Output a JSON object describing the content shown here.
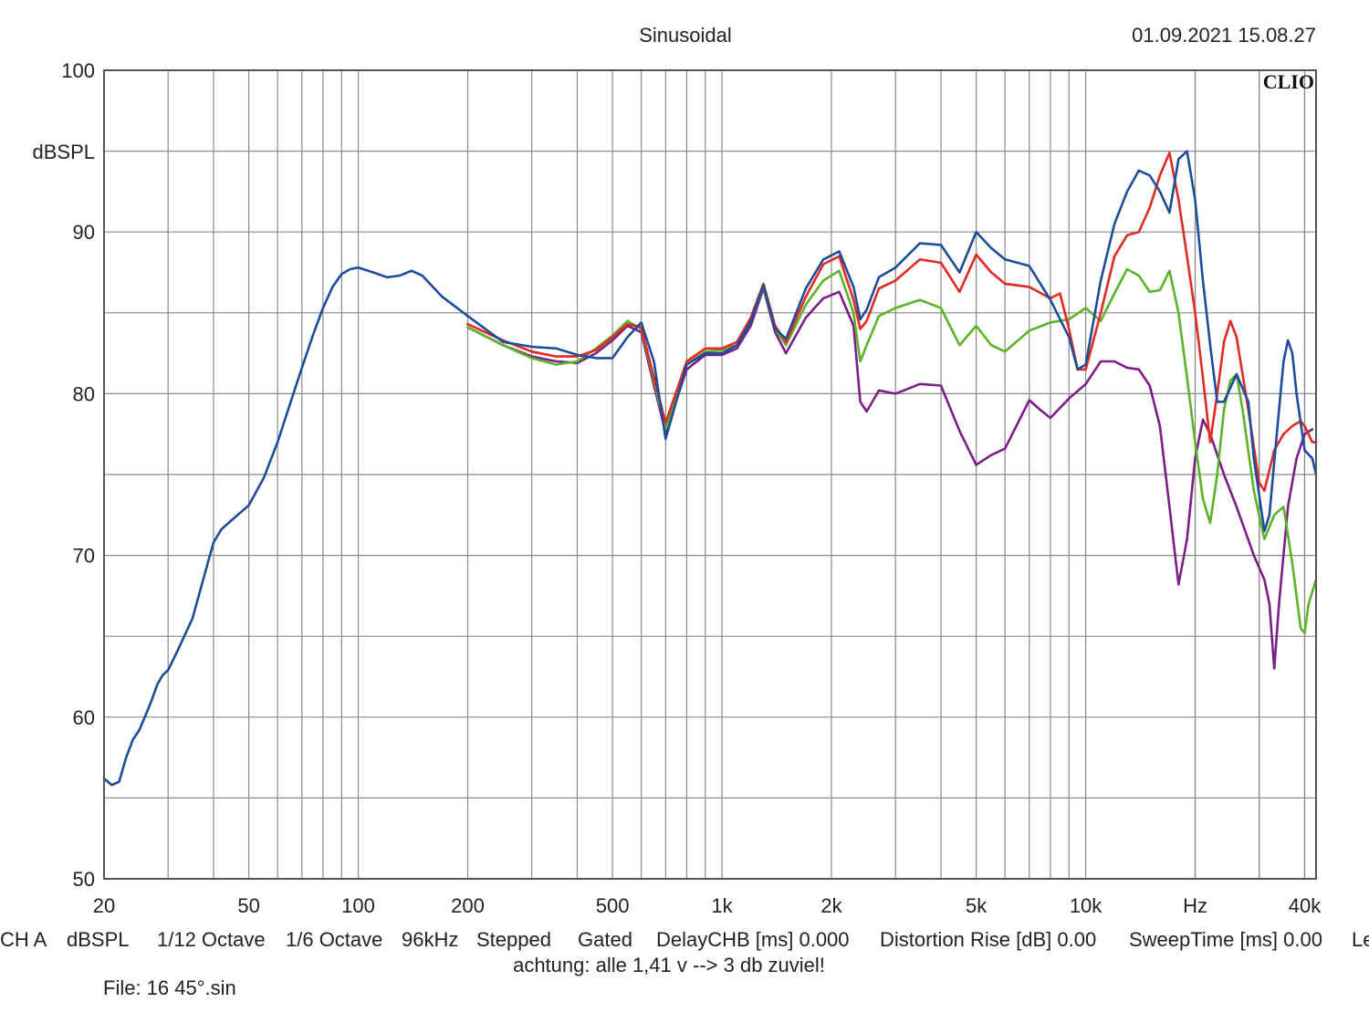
{
  "header": {
    "title": "Sinusoidal",
    "timestamp": "01.09.2021 15.08.27",
    "logo": "CLIO"
  },
  "chart_data": {
    "type": "line",
    "title": "Sinusoidal",
    "ylabel": "dBSPL",
    "xlabel": "Hz",
    "x_scale": "log",
    "xlim": [
      20,
      43000
    ],
    "ylim": [
      50,
      100
    ],
    "grid": true,
    "y_ticks": [
      "100",
      "90",
      "80",
      "70",
      "60",
      "50"
    ],
    "x_ticks": [
      "20",
      "50",
      "100",
      "200",
      "500",
      "1k",
      "2k",
      "5k",
      "10k",
      "Hz",
      "40k"
    ],
    "series": [
      {
        "color": "#7b1f86",
        "points": [
          [
            200,
            84.1
          ],
          [
            250,
            83.0
          ],
          [
            300,
            82.3
          ],
          [
            350,
            82.0
          ],
          [
            400,
            81.9
          ],
          [
            450,
            82.5
          ],
          [
            500,
            83.3
          ],
          [
            550,
            84.2
          ],
          [
            600,
            83.8
          ],
          [
            650,
            80.5
          ],
          [
            700,
            77.6
          ],
          [
            800,
            81.5
          ],
          [
            900,
            82.4
          ],
          [
            1000,
            82.4
          ],
          [
            1100,
            82.8
          ],
          [
            1200,
            84.2
          ],
          [
            1300,
            86.5
          ],
          [
            1400,
            83.8
          ],
          [
            1500,
            82.5
          ],
          [
            1700,
            84.7
          ],
          [
            1900,
            85.9
          ],
          [
            2100,
            86.3
          ],
          [
            2300,
            84.2
          ],
          [
            2400,
            79.5
          ],
          [
            2500,
            78.9
          ],
          [
            2700,
            80.2
          ],
          [
            3000,
            80.0
          ],
          [
            3500,
            80.6
          ],
          [
            4000,
            80.5
          ],
          [
            4500,
            77.7
          ],
          [
            5000,
            75.6
          ],
          [
            5500,
            76.2
          ],
          [
            6000,
            76.6
          ],
          [
            7000,
            79.6
          ],
          [
            7500,
            79.0
          ],
          [
            8000,
            78.5
          ],
          [
            9000,
            79.7
          ],
          [
            10000,
            80.6
          ],
          [
            11000,
            82.0
          ],
          [
            12000,
            82.0
          ],
          [
            13000,
            81.6
          ],
          [
            14000,
            81.5
          ],
          [
            15000,
            80.5
          ],
          [
            16000,
            78.0
          ],
          [
            17000,
            73.0
          ],
          [
            18000,
            68.2
          ],
          [
            19000,
            71.0
          ],
          [
            20000,
            76.0
          ],
          [
            21000,
            78.4
          ],
          [
            22000,
            77.5
          ],
          [
            24000,
            75.0
          ],
          [
            26000,
            73.0
          ],
          [
            29000,
            70.0
          ],
          [
            31000,
            68.5
          ],
          [
            32000,
            67.0
          ],
          [
            33000,
            63.0
          ],
          [
            34000,
            67.0
          ],
          [
            36000,
            73.0
          ],
          [
            38000,
            76.0
          ],
          [
            40000,
            77.5
          ],
          [
            42000,
            77.8
          ]
        ]
      },
      {
        "color": "#5bb32a",
        "points": [
          [
            200,
            84.1
          ],
          [
            250,
            83.0
          ],
          [
            300,
            82.2
          ],
          [
            350,
            81.8
          ],
          [
            400,
            82.0
          ],
          [
            450,
            82.8
          ],
          [
            500,
            83.6
          ],
          [
            550,
            84.5
          ],
          [
            600,
            84.0
          ],
          [
            650,
            80.8
          ],
          [
            700,
            77.8
          ],
          [
            800,
            81.8
          ],
          [
            900,
            82.6
          ],
          [
            1000,
            82.7
          ],
          [
            1100,
            83.0
          ],
          [
            1200,
            84.5
          ],
          [
            1300,
            86.6
          ],
          [
            1400,
            84.0
          ],
          [
            1500,
            83.0
          ],
          [
            1700,
            85.5
          ],
          [
            1900,
            87.0
          ],
          [
            2100,
            87.6
          ],
          [
            2300,
            85.0
          ],
          [
            2400,
            82.0
          ],
          [
            2500,
            83.0
          ],
          [
            2700,
            84.8
          ],
          [
            3000,
            85.3
          ],
          [
            3500,
            85.8
          ],
          [
            4000,
            85.3
          ],
          [
            4500,
            83.0
          ],
          [
            5000,
            84.2
          ],
          [
            5500,
            83.0
          ],
          [
            6000,
            82.6
          ],
          [
            7000,
            83.9
          ],
          [
            8000,
            84.4
          ],
          [
            9000,
            84.6
          ],
          [
            10000,
            85.3
          ],
          [
            11000,
            84.5
          ],
          [
            12000,
            86.2
          ],
          [
            13000,
            87.7
          ],
          [
            14000,
            87.3
          ],
          [
            15000,
            86.3
          ],
          [
            16000,
            86.4
          ],
          [
            17000,
            87.6
          ],
          [
            18000,
            85.0
          ],
          [
            19000,
            81.0
          ],
          [
            20000,
            77.0
          ],
          [
            21000,
            73.5
          ],
          [
            22000,
            72.0
          ],
          [
            23000,
            75.0
          ],
          [
            24000,
            79.0
          ],
          [
            25000,
            80.8
          ],
          [
            26000,
            81.2
          ],
          [
            27000,
            79.0
          ],
          [
            29000,
            74.0
          ],
          [
            31000,
            71.0
          ],
          [
            33000,
            72.5
          ],
          [
            35000,
            73.0
          ],
          [
            37000,
            69.5
          ],
          [
            39000,
            65.5
          ],
          [
            40000,
            65.2
          ],
          [
            41000,
            67.0
          ],
          [
            43000,
            68.5
          ]
        ]
      },
      {
        "color": "#e02a22",
        "points": [
          [
            200,
            84.3
          ],
          [
            250,
            83.3
          ],
          [
            300,
            82.6
          ],
          [
            350,
            82.3
          ],
          [
            400,
            82.3
          ],
          [
            450,
            82.7
          ],
          [
            500,
            83.5
          ],
          [
            550,
            84.3
          ],
          [
            600,
            84.1
          ],
          [
            650,
            81.0
          ],
          [
            700,
            78.2
          ],
          [
            800,
            82.0
          ],
          [
            900,
            82.8
          ],
          [
            1000,
            82.8
          ],
          [
            1100,
            83.2
          ],
          [
            1200,
            84.7
          ],
          [
            1300,
            86.8
          ],
          [
            1400,
            84.2
          ],
          [
            1500,
            83.2
          ],
          [
            1700,
            86.0
          ],
          [
            1900,
            88.0
          ],
          [
            2100,
            88.5
          ],
          [
            2300,
            85.8
          ],
          [
            2400,
            84.0
          ],
          [
            2500,
            84.5
          ],
          [
            2700,
            86.5
          ],
          [
            3000,
            87.0
          ],
          [
            3500,
            88.3
          ],
          [
            4000,
            88.1
          ],
          [
            4500,
            86.3
          ],
          [
            5000,
            88.6
          ],
          [
            5500,
            87.5
          ],
          [
            6000,
            86.8
          ],
          [
            7000,
            86.6
          ],
          [
            8000,
            85.9
          ],
          [
            8500,
            86.2
          ],
          [
            9000,
            84.0
          ],
          [
            9500,
            81.5
          ],
          [
            10000,
            81.5
          ],
          [
            11000,
            85.0
          ],
          [
            12000,
            88.5
          ],
          [
            13000,
            89.8
          ],
          [
            14000,
            90.0
          ],
          [
            15000,
            91.5
          ],
          [
            16000,
            93.5
          ],
          [
            17000,
            94.9
          ],
          [
            18000,
            92.0
          ],
          [
            19000,
            88.5
          ],
          [
            20000,
            85.0
          ],
          [
            21000,
            81.0
          ],
          [
            22000,
            77.0
          ],
          [
            23000,
            80.0
          ],
          [
            24000,
            83.2
          ],
          [
            25000,
            84.5
          ],
          [
            26000,
            83.5
          ],
          [
            28000,
            79.0
          ],
          [
            30000,
            74.5
          ],
          [
            31000,
            74.0
          ],
          [
            33000,
            76.5
          ],
          [
            35000,
            77.5
          ],
          [
            37000,
            78.0
          ],
          [
            39000,
            78.3
          ],
          [
            40000,
            78.0
          ],
          [
            42000,
            77.0
          ],
          [
            43000,
            77.0
          ]
        ]
      },
      {
        "color": "#1e4c9b",
        "points": [
          [
            20,
            56.2
          ],
          [
            21,
            55.8
          ],
          [
            22,
            56.0
          ],
          [
            23,
            57.5
          ],
          [
            24,
            58.6
          ],
          [
            25,
            59.2
          ],
          [
            26,
            60.1
          ],
          [
            27,
            61.0
          ],
          [
            28,
            62.0
          ],
          [
            29,
            62.6
          ],
          [
            30,
            62.9
          ],
          [
            32,
            64.2
          ],
          [
            35,
            66.1
          ],
          [
            38,
            69.0
          ],
          [
            40,
            70.8
          ],
          [
            42,
            71.6
          ],
          [
            45,
            72.2
          ],
          [
            50,
            73.1
          ],
          [
            55,
            74.8
          ],
          [
            60,
            77.0
          ],
          [
            65,
            79.4
          ],
          [
            70,
            81.6
          ],
          [
            75,
            83.6
          ],
          [
            80,
            85.3
          ],
          [
            85,
            86.6
          ],
          [
            90,
            87.4
          ],
          [
            95,
            87.7
          ],
          [
            100,
            87.8
          ],
          [
            110,
            87.5
          ],
          [
            120,
            87.2
          ],
          [
            130,
            87.3
          ],
          [
            140,
            87.6
          ],
          [
            150,
            87.3
          ],
          [
            170,
            86.0
          ],
          [
            200,
            84.8
          ],
          [
            250,
            83.2
          ],
          [
            300,
            82.9
          ],
          [
            350,
            82.8
          ],
          [
            400,
            82.4
          ],
          [
            450,
            82.2
          ],
          [
            500,
            82.2
          ],
          [
            550,
            83.5
          ],
          [
            600,
            84.4
          ],
          [
            650,
            82.0
          ],
          [
            700,
            77.2
          ],
          [
            800,
            81.8
          ],
          [
            900,
            82.5
          ],
          [
            1000,
            82.5
          ],
          [
            1100,
            83.0
          ],
          [
            1200,
            84.5
          ],
          [
            1300,
            86.7
          ],
          [
            1400,
            84.0
          ],
          [
            1500,
            83.4
          ],
          [
            1700,
            86.5
          ],
          [
            1900,
            88.3
          ],
          [
            2100,
            88.8
          ],
          [
            2300,
            86.6
          ],
          [
            2400,
            84.6
          ],
          [
            2500,
            85.2
          ],
          [
            2700,
            87.2
          ],
          [
            3000,
            87.8
          ],
          [
            3500,
            89.3
          ],
          [
            4000,
            89.2
          ],
          [
            4500,
            87.5
          ],
          [
            5000,
            90.0
          ],
          [
            5500,
            89.0
          ],
          [
            6000,
            88.3
          ],
          [
            7000,
            87.9
          ],
          [
            8000,
            85.8
          ],
          [
            9000,
            83.5
          ],
          [
            9500,
            81.5
          ],
          [
            10000,
            81.8
          ],
          [
            11000,
            87.0
          ],
          [
            12000,
            90.5
          ],
          [
            13000,
            92.5
          ],
          [
            14000,
            93.8
          ],
          [
            15000,
            93.5
          ],
          [
            16000,
            92.5
          ],
          [
            17000,
            91.2
          ],
          [
            18000,
            94.5
          ],
          [
            19000,
            95.0
          ],
          [
            20000,
            92.0
          ],
          [
            21000,
            87.0
          ],
          [
            22000,
            83.0
          ],
          [
            23000,
            79.5
          ],
          [
            24000,
            79.5
          ],
          [
            26000,
            81.2
          ],
          [
            28000,
            79.5
          ],
          [
            29000,
            76.0
          ],
          [
            31000,
            71.5
          ],
          [
            32000,
            72.5
          ],
          [
            34000,
            79.0
          ],
          [
            35000,
            82.0
          ],
          [
            36000,
            83.3
          ],
          [
            37000,
            82.5
          ],
          [
            38000,
            80.0
          ],
          [
            40000,
            76.5
          ],
          [
            42000,
            76.0
          ],
          [
            43000,
            75.0
          ]
        ]
      }
    ]
  },
  "footer": {
    "channel": "CH A",
    "unit": "dBSPL",
    "smoothing_1": "1/12 Octave",
    "smoothing_2": "1/6 Octave",
    "sample_rate": "96kHz",
    "mode": "Stepped",
    "window": "Gated",
    "delay": "DelayCHB [ms] 0.000",
    "distortion": "Distortion Rise [dB] 0.00",
    "sweep": "SweepTime [ms] 0.00",
    "truncated": "Le",
    "note": "achtung: alle 1,41 v --> 3 db zuviel!",
    "file": "File: 16 45°.sin"
  }
}
